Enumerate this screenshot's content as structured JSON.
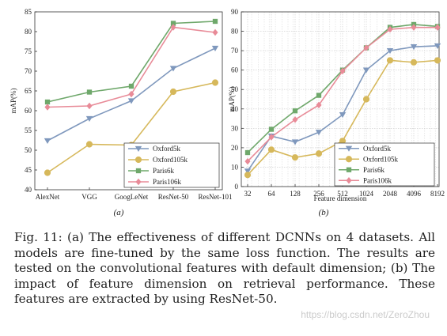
{
  "colors": {
    "Oxford5k": "#7f98bd",
    "Oxford105k": "#d6b85b",
    "Paris6k": "#6fa86b",
    "Paris106k": "#e88b98"
  },
  "chart_data": [
    {
      "type": "line",
      "subtitle": "(a)",
      "ylabel": "mAP(%)",
      "xlabel": "",
      "categories": [
        "AlexNet",
        "VGG",
        "GoogLeNet",
        "ResNet-50",
        "ResNet-101"
      ],
      "ylim": [
        40,
        85
      ],
      "yticks": [
        40,
        45,
        50,
        55,
        60,
        65,
        70,
        75,
        80,
        85
      ],
      "grid": false,
      "legend_position": "bottom-right",
      "series": [
        {
          "name": "Oxford5k",
          "marker": "triangle-down",
          "values": [
            52.4,
            58.0,
            62.5,
            70.7,
            75.8
          ]
        },
        {
          "name": "Oxford105k",
          "marker": "circle",
          "values": [
            44.3,
            51.5,
            51.3,
            64.8,
            67.1
          ]
        },
        {
          "name": "Paris6k",
          "marker": "square",
          "values": [
            62.2,
            64.7,
            66.2,
            82.1,
            82.6
          ]
        },
        {
          "name": "Paris106k",
          "marker": "diamond",
          "values": [
            60.9,
            61.2,
            64.2,
            81.1,
            79.8
          ]
        }
      ]
    },
    {
      "type": "line",
      "subtitle": "(b)",
      "ylabel": "mAP(%)",
      "xlabel": "Feature dimension",
      "categories": [
        "32",
        "64",
        "128",
        "256",
        "512",
        "1024",
        "2048",
        "4096",
        "8192"
      ],
      "x": [
        32,
        64,
        128,
        256,
        512,
        1024,
        2048,
        4096,
        8192
      ],
      "xscale": "log2",
      "ylim": [
        0,
        90
      ],
      "yticks": [
        0,
        10,
        20,
        30,
        40,
        50,
        60,
        70,
        80,
        90
      ],
      "grid": true,
      "legend_position": "bottom-right",
      "series": [
        {
          "name": "Oxford5k",
          "marker": "triangle-down",
          "values": [
            8,
            26,
            23,
            28,
            37,
            60,
            70,
            72,
            72.5
          ]
        },
        {
          "name": "Oxford105k",
          "marker": "circle",
          "values": [
            6,
            19,
            15,
            17,
            23.5,
            45,
            65,
            64,
            65
          ]
        },
        {
          "name": "Paris6k",
          "marker": "square",
          "values": [
            17.5,
            29.5,
            39,
            47,
            60,
            71.5,
            82,
            83.5,
            82.5
          ]
        },
        {
          "name": "Paris106k",
          "marker": "diamond",
          "values": [
            13,
            25.5,
            34.5,
            42,
            59.5,
            71.5,
            81,
            82,
            82
          ]
        }
      ]
    }
  ],
  "caption": "Fig. 11: (a) The effectiveness of different DCNNs on 4 datasets. All models are fine-tuned by the same loss function. The results are tested on the convolutional features with default dimension; (b) The impact of feature dimension on retrieval performance. These features are extracted by using ResNet-50.",
  "watermark": "https://blog.csdn.net/ZeroZhou"
}
